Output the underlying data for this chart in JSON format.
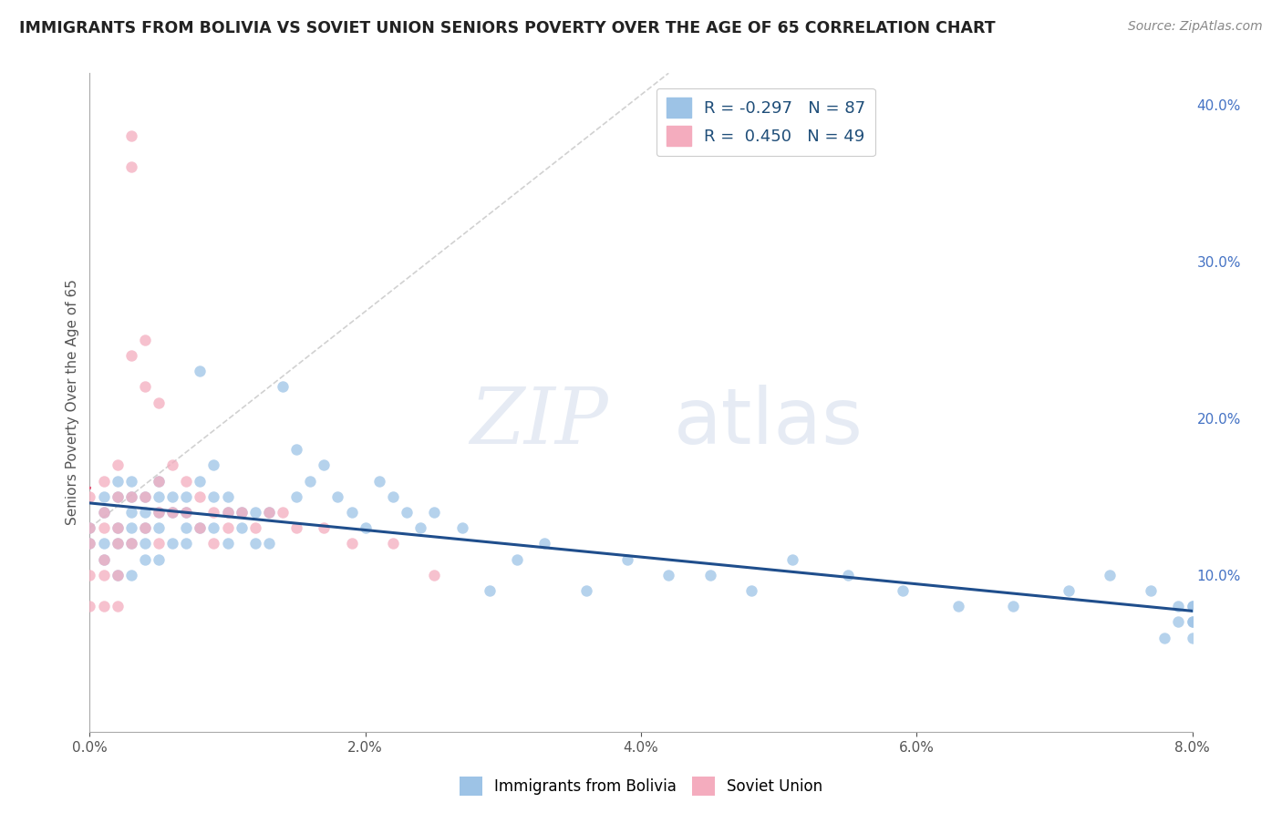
{
  "title": "IMMIGRANTS FROM BOLIVIA VS SOVIET UNION SENIORS POVERTY OVER THE AGE OF 65 CORRELATION CHART",
  "source": "Source: ZipAtlas.com",
  "ylabel": "Seniors Poverty Over the Age of 65",
  "bolivia_R": -0.297,
  "bolivia_N": 87,
  "soviet_R": 0.45,
  "soviet_N": 49,
  "bolivia_color": "#9DC3E6",
  "soviet_color": "#F4ACBE",
  "bolivia_line_color": "#1F4E8C",
  "soviet_line_color": "#E05A7A",
  "background_color": "#FFFFFF",
  "grid_color": "#CCCCCC",
  "xmin": 0.0,
  "xmax": 0.08,
  "ymin": 0.0,
  "ymax": 0.42,
  "bolivia_x": [
    0.0,
    0.0,
    0.001,
    0.001,
    0.001,
    0.001,
    0.002,
    0.002,
    0.002,
    0.002,
    0.002,
    0.003,
    0.003,
    0.003,
    0.003,
    0.003,
    0.003,
    0.004,
    0.004,
    0.004,
    0.004,
    0.004,
    0.005,
    0.005,
    0.005,
    0.005,
    0.005,
    0.006,
    0.006,
    0.006,
    0.007,
    0.007,
    0.007,
    0.007,
    0.008,
    0.008,
    0.008,
    0.009,
    0.009,
    0.009,
    0.01,
    0.01,
    0.01,
    0.011,
    0.011,
    0.012,
    0.012,
    0.013,
    0.013,
    0.014,
    0.015,
    0.015,
    0.016,
    0.017,
    0.018,
    0.019,
    0.02,
    0.021,
    0.022,
    0.023,
    0.024,
    0.025,
    0.027,
    0.029,
    0.031,
    0.033,
    0.036,
    0.039,
    0.042,
    0.045,
    0.048,
    0.051,
    0.055,
    0.059,
    0.063,
    0.067,
    0.071,
    0.074,
    0.077,
    0.079,
    0.08,
    0.08,
    0.08,
    0.08,
    0.08,
    0.079,
    0.078
  ],
  "bolivia_y": [
    0.13,
    0.12,
    0.15,
    0.14,
    0.12,
    0.11,
    0.16,
    0.15,
    0.13,
    0.12,
    0.1,
    0.16,
    0.15,
    0.14,
    0.13,
    0.12,
    0.1,
    0.15,
    0.14,
    0.13,
    0.12,
    0.11,
    0.16,
    0.15,
    0.14,
    0.13,
    0.11,
    0.15,
    0.14,
    0.12,
    0.15,
    0.14,
    0.13,
    0.12,
    0.23,
    0.16,
    0.13,
    0.17,
    0.15,
    0.13,
    0.15,
    0.14,
    0.12,
    0.14,
    0.13,
    0.14,
    0.12,
    0.14,
    0.12,
    0.22,
    0.18,
    0.15,
    0.16,
    0.17,
    0.15,
    0.14,
    0.13,
    0.16,
    0.15,
    0.14,
    0.13,
    0.14,
    0.13,
    0.09,
    0.11,
    0.12,
    0.09,
    0.11,
    0.1,
    0.1,
    0.09,
    0.11,
    0.1,
    0.09,
    0.08,
    0.08,
    0.09,
    0.1,
    0.09,
    0.08,
    0.07,
    0.08,
    0.07,
    0.06,
    0.08,
    0.07,
    0.06
  ],
  "soviet_x": [
    0.0,
    0.0,
    0.0,
    0.0,
    0.0,
    0.001,
    0.001,
    0.001,
    0.001,
    0.001,
    0.001,
    0.002,
    0.002,
    0.002,
    0.002,
    0.002,
    0.002,
    0.003,
    0.003,
    0.003,
    0.003,
    0.003,
    0.004,
    0.004,
    0.004,
    0.004,
    0.005,
    0.005,
    0.005,
    0.005,
    0.006,
    0.006,
    0.007,
    0.007,
    0.008,
    0.008,
    0.009,
    0.009,
    0.01,
    0.01,
    0.011,
    0.012,
    0.013,
    0.014,
    0.015,
    0.017,
    0.019,
    0.022,
    0.025
  ],
  "soviet_y": [
    0.15,
    0.13,
    0.12,
    0.1,
    0.08,
    0.16,
    0.14,
    0.13,
    0.11,
    0.1,
    0.08,
    0.17,
    0.15,
    0.13,
    0.12,
    0.1,
    0.08,
    0.38,
    0.36,
    0.24,
    0.15,
    0.12,
    0.25,
    0.22,
    0.15,
    0.13,
    0.21,
    0.16,
    0.14,
    0.12,
    0.17,
    0.14,
    0.16,
    0.14,
    0.15,
    0.13,
    0.14,
    0.12,
    0.14,
    0.13,
    0.14,
    0.13,
    0.14,
    0.14,
    0.13,
    0.13,
    0.12,
    0.12,
    0.1
  ]
}
